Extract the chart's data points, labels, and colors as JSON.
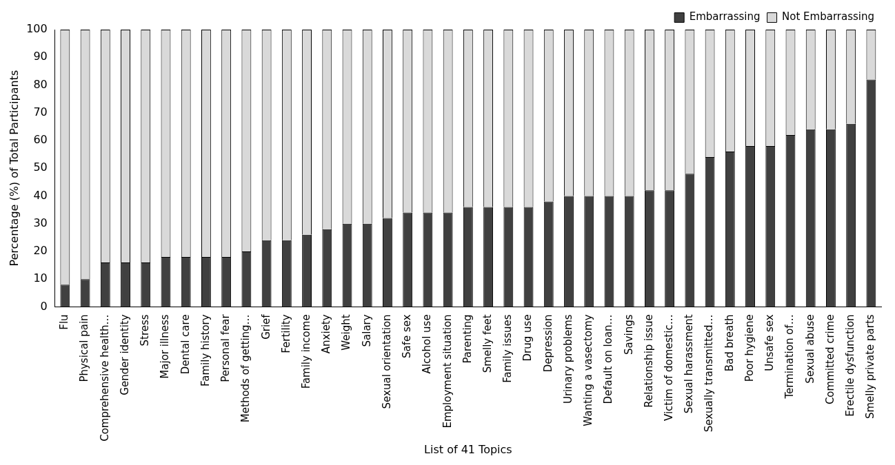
{
  "chart_data": {
    "type": "bar",
    "stacked": true,
    "xlabel": "List of 41 Topics",
    "ylabel": "Percentage (%) of Total Participants",
    "categories": [
      "Flu",
      "Physical pain",
      "Comprehensive health…",
      "Gender identity",
      "Stress",
      "Major illness",
      "Dental care",
      "Family history",
      "Personal fear",
      "Methods of getting…",
      "Grief",
      "Fertility",
      "Family income",
      "Anxiety",
      "Weight",
      "Salary",
      "Sexual orientation",
      "Safe sex",
      "Alcohol use",
      "Employment situation",
      "Parenting",
      "Smelly feet",
      "Family issues",
      "Drug use",
      "Depression",
      "Urinary problems",
      "Wanting a vasectomy",
      "Default on loan…",
      "Savings",
      "Relationship issue",
      "Victim of domestic…",
      "Sexual harassment",
      "Sexually transmitted…",
      "Bad breath",
      "Poor hygiene",
      "Unsafe sex",
      "Termination of…",
      "Sexual abuse",
      "Committed crime",
      "Erectile dysfunction",
      "Smelly private parts"
    ],
    "series": [
      {
        "name": "Embarrassing",
        "color": "#404040",
        "values": [
          8,
          10,
          16,
          16,
          16,
          18,
          18,
          18,
          18,
          20,
          24,
          24,
          26,
          28,
          30,
          30,
          32,
          34,
          34,
          34,
          36,
          36,
          36,
          36,
          38,
          40,
          40,
          40,
          40,
          42,
          42,
          48,
          54,
          56,
          58,
          58,
          62,
          64,
          64,
          66,
          82
        ]
      },
      {
        "name": "Not Embarrassing",
        "color": "#d9d9d9",
        "values": [
          92,
          90,
          84,
          84,
          84,
          82,
          82,
          82,
          82,
          80,
          76,
          76,
          74,
          72,
          70,
          70,
          68,
          66,
          66,
          66,
          64,
          64,
          64,
          64,
          62,
          60,
          60,
          60,
          60,
          58,
          58,
          52,
          46,
          44,
          42,
          42,
          38,
          36,
          36,
          34,
          18
        ]
      }
    ],
    "ylim": [
      0,
      100
    ],
    "yticks": [
      0,
      10,
      20,
      30,
      40,
      50,
      60,
      70,
      80,
      90,
      100
    ],
    "grid": false,
    "legend": "top right"
  }
}
